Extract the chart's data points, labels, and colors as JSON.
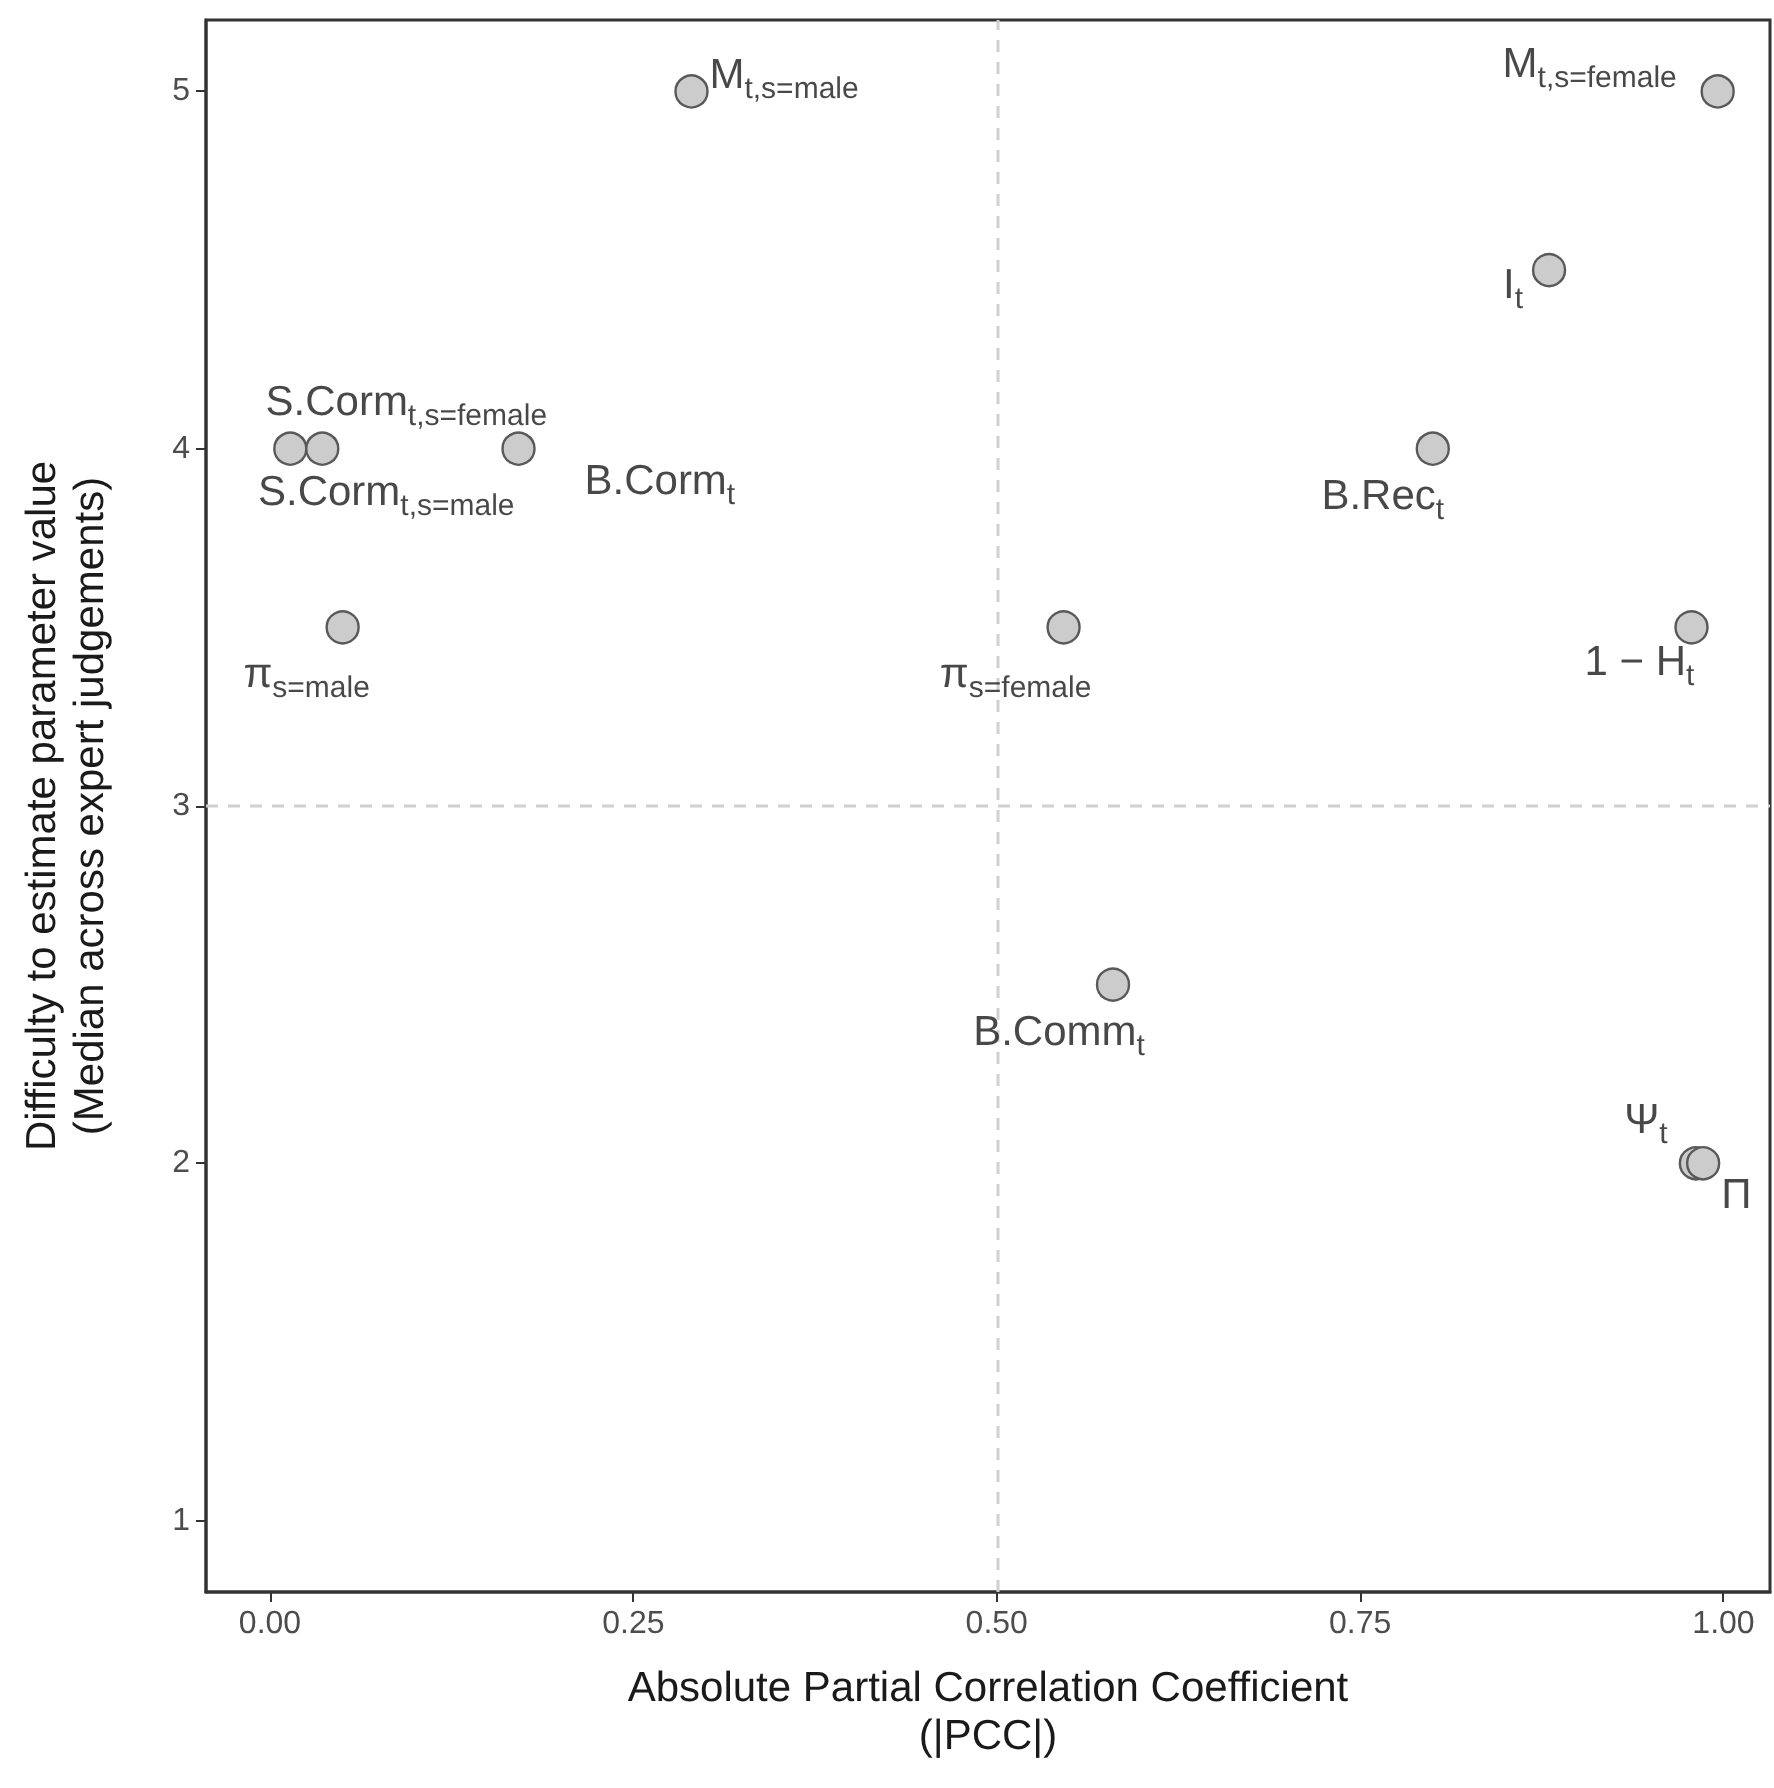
{
  "chart_data": {
    "type": "scatter",
    "xlabel": "Absolute Partial Correlation Coefficient\n(|PCC|)",
    "ylabel": "Difficulty to estimate parameter value\n(Median across expert judgements)",
    "series": [
      {
        "color": "#cccccc",
        "x": [
          0.29,
          0.996,
          0.88,
          0.014,
          0.036,
          0.171,
          0.8,
          0.05,
          0.546,
          0.978,
          0.58,
          0.981,
          0.986
        ],
        "values": [
          5,
          5,
          4.5,
          4,
          4,
          4,
          4,
          3.5,
          3.5,
          3.5,
          2.5,
          2,
          2
        ]
      }
    ],
    "annotations": [
      {
        "text": "M$_{t,s=male}$",
        "x": 0.29,
        "y": 5
      },
      {
        "text": "M$_{t,s=female}$",
        "x": 0.996,
        "y": 5
      },
      {
        "text": "I$_{t}$",
        "x": 0.88,
        "y": 4.5
      },
      {
        "text": "S.Corm$_{t,s=female}$",
        "x": 0.014,
        "y": 4
      },
      {
        "text": "S.Corm$_{t,s=male}$",
        "x": 0.036,
        "y": 4
      },
      {
        "text": "B.Corm$_{t}$",
        "x": 0.171,
        "y": 4
      },
      {
        "text": "B.Rec$_{t}$",
        "x": 0.8,
        "y": 4
      },
      {
        "text": "π$_{s=male}$",
        "x": 0.05,
        "y": 3.5
      },
      {
        "text": "π$_{s=female}$",
        "x": 0.546,
        "y": 3.5
      },
      {
        "text": "1 − H$_{t}$",
        "x": 0.978,
        "y": 3.5
      },
      {
        "text": "B.Comm$_{t}$",
        "x": 0.58,
        "y": 2.5
      },
      {
        "text": "Ψ$_{t}$",
        "x": 0.981,
        "y": 2
      },
      {
        "text": "Π",
        "x": 0.986,
        "y": 2
      }
    ],
    "xlim": [
      -0.044,
      1.032
    ],
    "ylim": [
      0.8,
      5.2
    ],
    "xticks": [
      {
        "value": 0,
        "label": "0.00"
      },
      {
        "value": 0.25,
        "label": "0.25"
      },
      {
        "value": 0.5,
        "label": "0.50"
      },
      {
        "value": 0.75,
        "label": "0.75"
      },
      {
        "value": 1,
        "label": "1.00"
      }
    ],
    "yticks": [
      1,
      2,
      3,
      4,
      5
    ],
    "ref_lines": [
      {
        "axis": "x",
        "value": 0.5,
        "color": "#d0d0d0",
        "line_style": "dashed"
      },
      {
        "axis": "y",
        "value": 3,
        "color": "#d0d0d0",
        "line_style": "dashed"
      }
    ],
    "marker": "circle",
    "grid": false
  }
}
